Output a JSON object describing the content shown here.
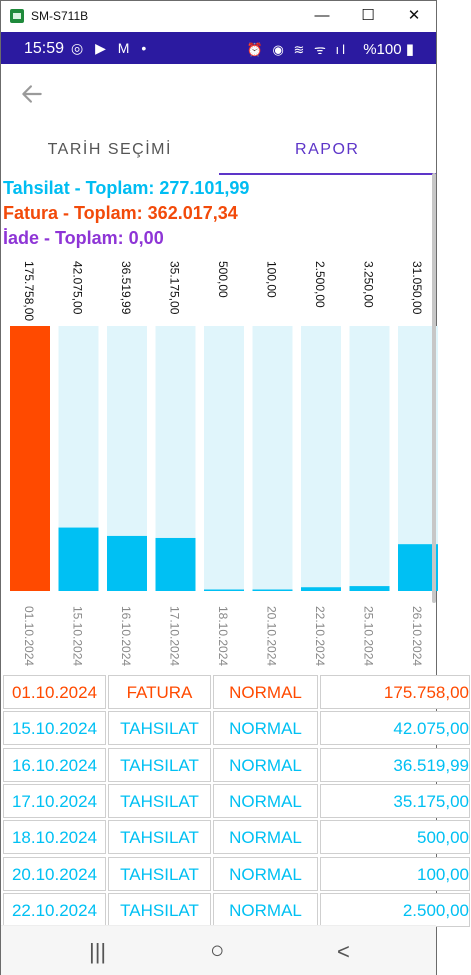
{
  "window": {
    "title": "SM-S711B",
    "minimize": "—",
    "maximize": "☐",
    "close": "✕"
  },
  "statusbar": {
    "time": "15:59",
    "left_icons": "◎ ▶ M •",
    "right_icons": "⏰ ◉ ≋ ᯤ ıl",
    "battery": "%100 ▮"
  },
  "tabs": [
    {
      "label": "TARİH SEÇİMİ"
    },
    {
      "label": "RAPOR"
    }
  ],
  "totals": {
    "tahsilat": "Tahsilat - Toplam: 277.101,99",
    "fatura": "Fatura - Toplam: 362.017,34",
    "iade": "İade - Toplam: 0,00"
  },
  "colors": {
    "tahsilat": "#00c0f3",
    "fatura": "#ff4a00",
    "iade": "#8e35d6",
    "track": "#e0f5fb",
    "accent": "#5d35c8"
  },
  "chart_data": {
    "type": "bar",
    "categories": [
      "01.10.2024",
      "15.10.2024",
      "16.10.2024",
      "17.10.2024",
      "18.10.2024",
      "20.10.2024",
      "22.10.2024",
      "25.10.2024",
      "26.10.2024"
    ],
    "values": [
      175758.0,
      42075.0,
      36519.99,
      35175.0,
      500.0,
      100.0,
      2500.0,
      3250.0,
      31050.0
    ],
    "labels": [
      "175.758,00",
      "42.075,00",
      "36.519,99",
      "35.175,00",
      "500,00",
      "100,00",
      "2.500,00",
      "3.250,00",
      "31.050,00"
    ],
    "kinds": [
      "FATURA",
      "TAHSILAT",
      "TAHSILAT",
      "TAHSILAT",
      "TAHSILAT",
      "TAHSILAT",
      "TAHSILAT",
      "TAHSILAT",
      "TAHSILAT"
    ],
    "ylim": [
      0,
      175758
    ]
  },
  "table": {
    "rows": [
      {
        "date": "01.10.2024",
        "kind": "FATURA",
        "status": "NORMAL",
        "amount": "175.758,00",
        "color": "#ff4a00"
      },
      {
        "date": "15.10.2024",
        "kind": "TAHSILAT",
        "status": "NORMAL",
        "amount": "42.075,00",
        "color": "#00c0f3"
      },
      {
        "date": "16.10.2024",
        "kind": "TAHSILAT",
        "status": "NORMAL",
        "amount": "36.519,99",
        "color": "#00c0f3"
      },
      {
        "date": "17.10.2024",
        "kind": "TAHSILAT",
        "status": "NORMAL",
        "amount": "35.175,00",
        "color": "#00c0f3"
      },
      {
        "date": "18.10.2024",
        "kind": "TAHSILAT",
        "status": "NORMAL",
        "amount": "500,00",
        "color": "#00c0f3"
      },
      {
        "date": "20.10.2024",
        "kind": "TAHSILAT",
        "status": "NORMAL",
        "amount": "100,00",
        "color": "#00c0f3"
      },
      {
        "date": "22.10.2024",
        "kind": "TAHSILAT",
        "status": "NORMAL",
        "amount": "2.500,00",
        "color": "#00c0f3"
      }
    ]
  },
  "navbar": {
    "recents": "|||",
    "home": "○",
    "back": "<"
  }
}
